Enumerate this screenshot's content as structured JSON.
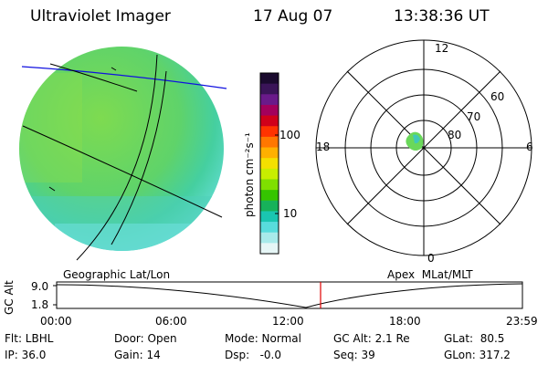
{
  "header": {
    "title": "Ultraviolet Imager",
    "date": "17 Aug 07",
    "time": "13:38:36 UT"
  },
  "colorbar": {
    "unit_label": "photon cm⁻²s⁻¹",
    "ticks": [
      "100",
      "10"
    ],
    "colors": [
      "#1a0a2e",
      "#3a1458",
      "#6a1a8a",
      "#a3005c",
      "#d0001a",
      "#ff3300",
      "#ff7700",
      "#ffb000",
      "#f4e000",
      "#c8ee00",
      "#7fdf00",
      "#35c400",
      "#17b25a",
      "#1ac6b0",
      "#58dcdc",
      "#a8eaea",
      "#e6f6f6"
    ]
  },
  "geo_panel": {
    "label": "Geographic Lat/Lon",
    "fill_color": "#6ad85a"
  },
  "polar_panel": {
    "label": "Apex  MLat/MLT",
    "mlt_labels": {
      "top": "12",
      "left": "18",
      "right": "6",
      "bottom": "0"
    },
    "lat_labels": [
      "60",
      "70",
      "80"
    ]
  },
  "timeline": {
    "axis_label": "GC Alt",
    "y_ticks": [
      "9.0",
      "1.8"
    ],
    "x_ticks": [
      "00:00",
      "06:00",
      "12:00",
      "18:00",
      "23:59"
    ],
    "marker_color": "#e00000"
  },
  "info": {
    "row1": [
      "Flt: LBHL",
      "Door: Open",
      "Mode: Normal",
      "GC Alt: 2.1 Re",
      "GLat:  80.5"
    ],
    "row2": [
      "IP: 36.0",
      "Gain: 14",
      "Dsp:   -0.0",
      "Seq: 39",
      "GLon: 317.2"
    ]
  }
}
